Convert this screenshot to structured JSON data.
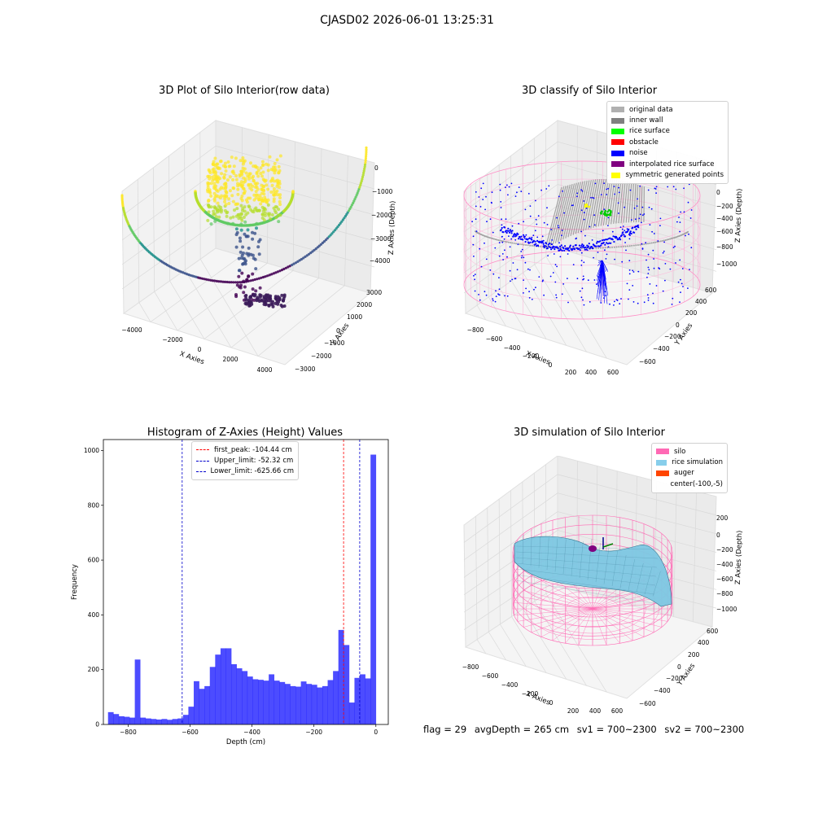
{
  "suptitle": "CJASD02 2026-06-01 13:25:31",
  "footer": {
    "flag": "flag = 29",
    "avg": "avgDepth = 265 cm",
    "sv1": "sv1 = 700~2300",
    "sv2": "sv2 = 700~2300"
  },
  "chart_data": [
    {
      "type": "scatter",
      "title": "3D Plot of Silo Interior(row data)",
      "xlabel": "X Axies",
      "ylabel": "Y Axies",
      "zlabel": "Z Axies (Depth)",
      "x_ticks": [
        "−4000",
        "−2000",
        "0",
        "2000",
        "4000"
      ],
      "y_ticks": [
        "−3000",
        "−2000",
        "−1000",
        "0",
        "1000",
        "2000",
        "3000"
      ],
      "z_ticks": [
        "0",
        "−1000",
        "−2000",
        "−3000",
        "−4000"
      ],
      "colormap": "viridis"
    },
    {
      "type": "scatter",
      "title": "3D classify of Silo Interior",
      "xlabel": "X Axies",
      "ylabel": "Y Axies",
      "zlabel": "Z Axies (Depth)",
      "x_ticks": [
        "−800",
        "−600",
        "−400",
        "−200",
        "0",
        "200",
        "400",
        "600"
      ],
      "y_ticks": [
        "−600",
        "−400",
        "−200",
        "0",
        "200",
        "400",
        "600"
      ],
      "z_ticks": [
        "0",
        "−200",
        "−400",
        "−600",
        "−800",
        "−1000"
      ],
      "legend": [
        {
          "label": "original data",
          "color": "#b0b0b0"
        },
        {
          "label": "inner wall",
          "color": "#808080"
        },
        {
          "label": "rice surface",
          "color": "#00ff00"
        },
        {
          "label": "obstacle",
          "color": "#ff0000"
        },
        {
          "label": "noise",
          "color": "#0000ff"
        },
        {
          "label": "interpolated rice surface",
          "color": "#800080"
        },
        {
          "label": "symmetric generated points",
          "color": "#ffff00"
        }
      ]
    },
    {
      "type": "bar",
      "title": "Histogram of Z-Axies (Height) Values",
      "xlabel": "Depth (cm)",
      "ylabel": "Frequency",
      "xlim": [
        -880,
        40
      ],
      "ylim": [
        0,
        1040
      ],
      "x_ticks": [
        -800,
        -600,
        -400,
        -200,
        0
      ],
      "y_ticks": [
        0,
        200,
        400,
        600,
        800,
        1000
      ],
      "bin_edges_start": -865,
      "bin_width": 17.3,
      "values": [
        45,
        38,
        30,
        28,
        25,
        237,
        25,
        22,
        20,
        18,
        20,
        17,
        20,
        22,
        35,
        65,
        158,
        130,
        140,
        210,
        255,
        278,
        278,
        220,
        205,
        195,
        175,
        165,
        163,
        160,
        183,
        160,
        155,
        148,
        140,
        138,
        157,
        148,
        145,
        135,
        140,
        162,
        195,
        345,
        290,
        80,
        170,
        183,
        168,
        985
      ],
      "bar_color": "#0000ff",
      "vlines": [
        {
          "label": "first_peak: -104.44 cm",
          "x": -104.44,
          "color": "#ff0000"
        },
        {
          "label": "Upper_limit: -52.32 cm",
          "x": -52.32,
          "color": "#0000cc"
        },
        {
          "label": "Lower_limit: -625.66 cm",
          "x": -625.66,
          "color": "#0000cc"
        }
      ]
    },
    {
      "type": "surface",
      "title": "3D simulation of Silo Interior",
      "xlabel": "X Axies",
      "ylabel": "Y Axies",
      "zlabel": "Z Axies (Depth)",
      "x_ticks": [
        "−800",
        "−600",
        "−400",
        "−200",
        "0",
        "200",
        "400",
        "600"
      ],
      "y_ticks": [
        "−600",
        "−400",
        "−200",
        "0",
        "200",
        "400",
        "600"
      ],
      "z_ticks": [
        "200",
        "0",
        "−200",
        "−400",
        "−600",
        "−800",
        "−1000"
      ],
      "legend": [
        {
          "label": "silo",
          "color": "#ff69b4"
        },
        {
          "label": "rice simulation",
          "color": "#87ceeb"
        },
        {
          "label": "auger",
          "color": "#ff4500"
        },
        {
          "label": "center(-100,-5)",
          "color": "none"
        }
      ]
    }
  ]
}
